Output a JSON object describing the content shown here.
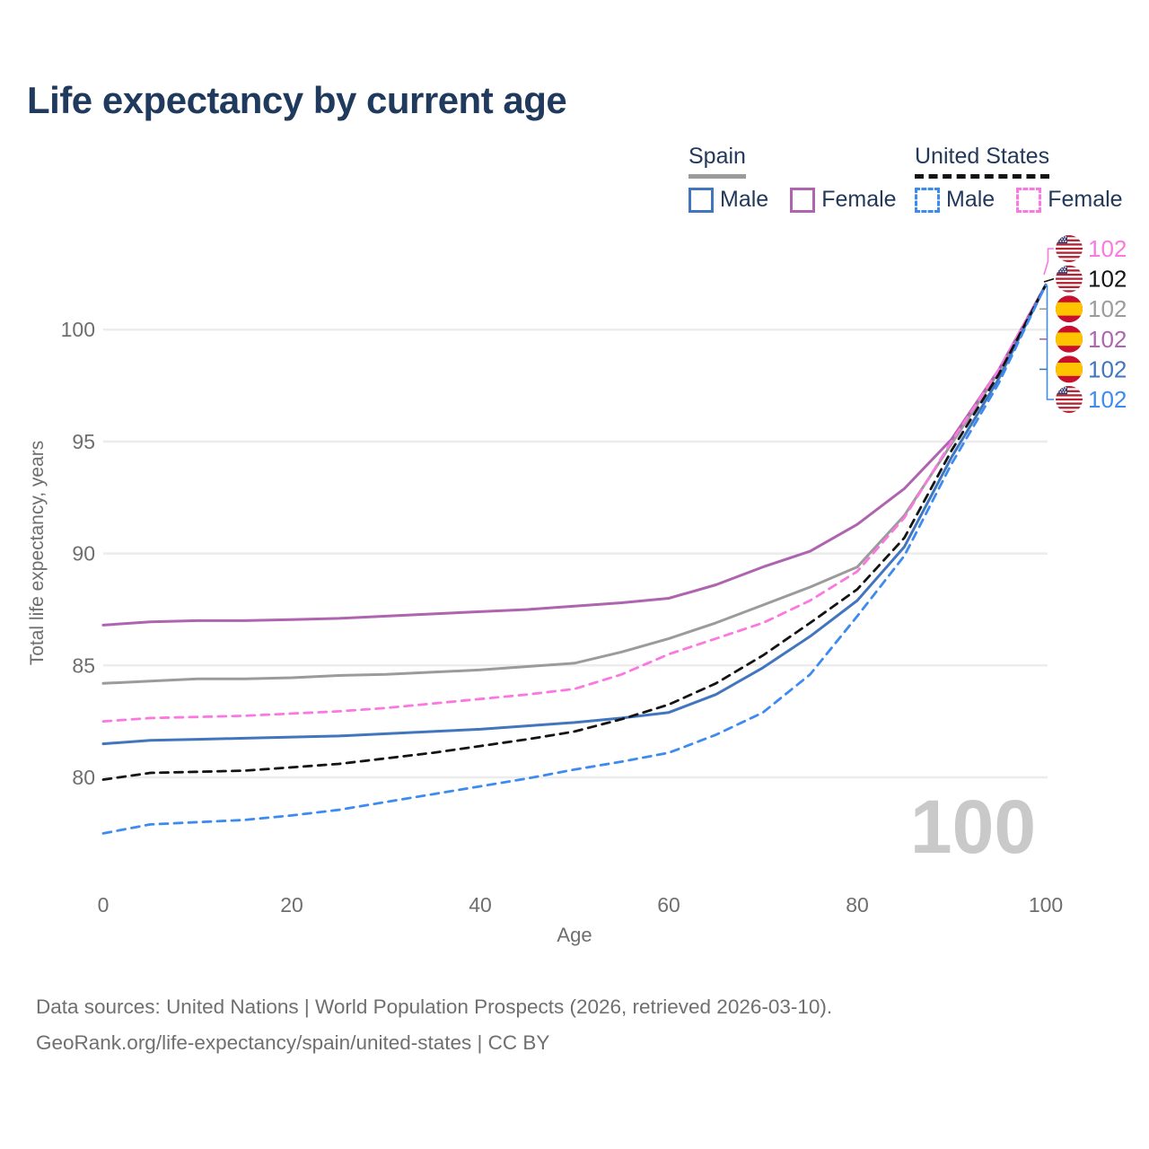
{
  "title": "Life expectancy by current age",
  "legend": {
    "position": "top-right",
    "groups": [
      {
        "title": "Spain",
        "line_style": "solid",
        "underline_color": "#9b9b9b",
        "items": [
          {
            "label": "Male",
            "color": "#4176be",
            "dash": false
          },
          {
            "label": "Female",
            "color": "#ae64ae",
            "dash": false
          }
        ]
      },
      {
        "title": "United States",
        "line_style": "dashed",
        "underline_color": "#141414",
        "items": [
          {
            "label": "Male",
            "color": "#3e8bef",
            "dash": true
          },
          {
            "label": "Female",
            "color": "#fb78e0",
            "dash": true
          }
        ]
      }
    ]
  },
  "chart_data": {
    "type": "line",
    "title": "Life expectancy by current age",
    "xlabel": "Age",
    "ylabel": "Total life expectancy, years",
    "xlim": [
      0,
      100
    ],
    "ylim": [
      77,
      103
    ],
    "xticks": [
      0,
      20,
      40,
      60,
      80,
      100
    ],
    "yticks": [
      80,
      85,
      90,
      95,
      100
    ],
    "grid": "horizontal",
    "hover_age_watermark": "100",
    "x": [
      0,
      5,
      10,
      15,
      20,
      25,
      30,
      35,
      40,
      45,
      50,
      55,
      60,
      65,
      70,
      75,
      80,
      85,
      90,
      95,
      100
    ],
    "series": [
      {
        "name": "Spain Both sexes",
        "country": "es",
        "color": "#9b9b9b",
        "dash": false,
        "values": [
          84.2,
          84.3,
          84.4,
          84.4,
          84.45,
          84.55,
          84.6,
          84.7,
          84.8,
          84.95,
          85.1,
          85.6,
          86.2,
          86.9,
          87.7,
          88.5,
          89.4,
          91.7,
          94.9,
          98.1,
          102
        ]
      },
      {
        "name": "Spain Female",
        "country": "es",
        "color": "#ae64ae",
        "dash": false,
        "values": [
          86.8,
          86.95,
          87.0,
          87.0,
          87.05,
          87.1,
          87.2,
          87.3,
          87.4,
          87.5,
          87.65,
          87.8,
          88.0,
          88.6,
          89.4,
          90.1,
          91.3,
          92.9,
          95.1,
          98.2,
          102
        ]
      },
      {
        "name": "United States Female",
        "country": "us",
        "color": "#fb78e0",
        "dash": true,
        "values": [
          82.5,
          82.65,
          82.7,
          82.75,
          82.85,
          82.95,
          83.1,
          83.3,
          83.5,
          83.7,
          83.95,
          84.6,
          85.5,
          86.2,
          86.9,
          87.9,
          89.2,
          91.6,
          95.0,
          98.2,
          102
        ]
      },
      {
        "name": "Spain Male",
        "country": "es",
        "color": "#4176be",
        "dash": false,
        "values": [
          81.5,
          81.65,
          81.7,
          81.75,
          81.8,
          81.85,
          81.95,
          82.05,
          82.15,
          82.3,
          82.45,
          82.65,
          82.9,
          83.7,
          84.9,
          86.3,
          87.9,
          90.3,
          94.3,
          97.8,
          102
        ]
      },
      {
        "name": "United States Both sexes",
        "country": "us",
        "color": "#141414",
        "dash": true,
        "values": [
          79.9,
          80.2,
          80.25,
          80.3,
          80.45,
          80.6,
          80.85,
          81.1,
          81.4,
          81.7,
          82.05,
          82.6,
          83.25,
          84.2,
          85.45,
          86.9,
          88.4,
          90.7,
          94.6,
          98.0,
          102
        ]
      },
      {
        "name": "United States Male",
        "country": "us",
        "color": "#3e8bef",
        "dash": true,
        "values": [
          77.5,
          77.9,
          78.0,
          78.1,
          78.3,
          78.55,
          78.9,
          79.25,
          79.6,
          79.95,
          80.35,
          80.7,
          81.1,
          81.9,
          82.9,
          84.6,
          87.2,
          89.9,
          94.0,
          97.6,
          102
        ]
      }
    ],
    "right_labels": [
      {
        "series": "United States Female",
        "flag": "us",
        "label": "102",
        "color": "#fb78e0"
      },
      {
        "series": "United States Both sexes",
        "flag": "us",
        "label": "102",
        "color": "#141414"
      },
      {
        "series": "Spain Both sexes",
        "flag": "es",
        "label": "102",
        "color": "#9b9b9b"
      },
      {
        "series": "Spain Female",
        "flag": "es",
        "label": "102",
        "color": "#ae64ae"
      },
      {
        "series": "Spain Male",
        "flag": "es",
        "label": "102",
        "color": "#4176be"
      },
      {
        "series": "United States Male",
        "flag": "us",
        "label": "102",
        "color": "#3e8bef"
      }
    ]
  },
  "colors": {
    "title_text": "#1f3a5c",
    "legend_text": "#23395b",
    "grid": "#ececec",
    "axis_text": "#6e6e6e",
    "watermark": "#c9c9c9",
    "footer_text": "#6f6f6f"
  },
  "footer": {
    "line1": "Data sources: United Nations | World Population Prospects (2026, retrieved 2026-03-10).",
    "line2": "GeoRank.org/life-expectancy/spain/united-states | CC BY"
  }
}
